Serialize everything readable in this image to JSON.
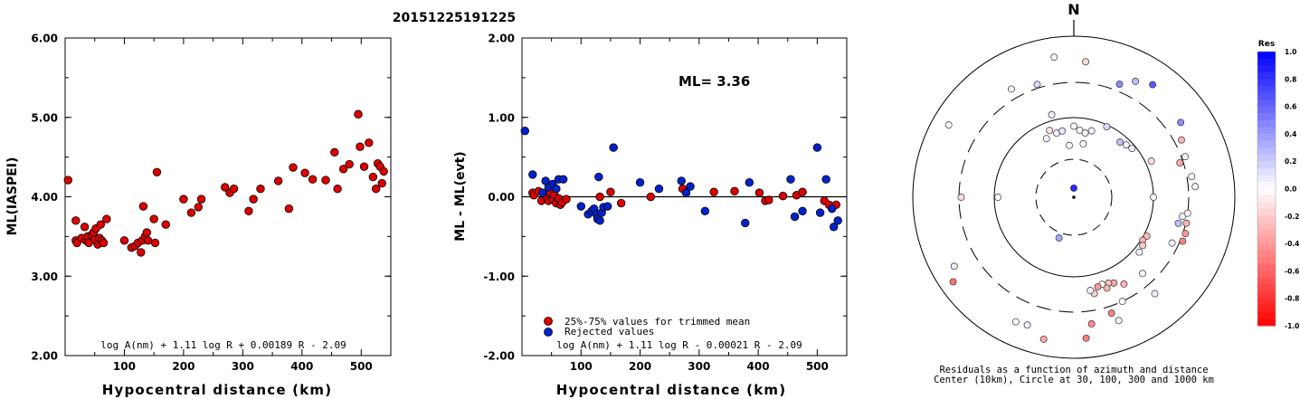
{
  "title": "20151225191225",
  "chart_data": [
    {
      "type": "scatter",
      "ylabel": "ML(IASPEI)",
      "xlabel": "Hypocentral distance (km)",
      "xlim": [
        0,
        550
      ],
      "ylim": [
        2.0,
        6.0
      ],
      "x_ticks": [
        "100",
        "200",
        "300",
        "400",
        "500"
      ],
      "y_ticks": [
        "2.00",
        "3.00",
        "4.00",
        "5.00",
        "6.00"
      ],
      "formula": "log A(nm) + 1.11 log R + 0.00189 R - 2.09",
      "series": [
        {
          "color": "#dd0000",
          "points": [
            [
              5,
              4.21
            ],
            [
              18,
              3.7
            ],
            [
              18,
              3.45
            ],
            [
              20,
              3.42
            ],
            [
              28,
              3.48
            ],
            [
              33,
              3.62
            ],
            [
              35,
              3.45
            ],
            [
              38,
              3.5
            ],
            [
              40,
              3.42
            ],
            [
              45,
              3.52
            ],
            [
              48,
              3.55
            ],
            [
              50,
              3.46
            ],
            [
              52,
              3.6
            ],
            [
              55,
              3.4
            ],
            [
              58,
              3.48
            ],
            [
              60,
              3.65
            ],
            [
              62,
              3.45
            ],
            [
              65,
              3.42
            ],
            [
              70,
              3.72
            ],
            [
              100,
              3.45
            ],
            [
              112,
              3.36
            ],
            [
              118,
              3.38
            ],
            [
              123,
              3.42
            ],
            [
              128,
              3.3
            ],
            [
              130,
              3.45
            ],
            [
              132,
              3.88
            ],
            [
              135,
              3.5
            ],
            [
              138,
              3.55
            ],
            [
              140,
              3.45
            ],
            [
              150,
              3.72
            ],
            [
              152,
              3.42
            ],
            [
              155,
              4.31
            ],
            [
              170,
              3.65
            ],
            [
              200,
              3.97
            ],
            [
              213,
              3.8
            ],
            [
              225,
              3.87
            ],
            [
              230,
              3.97
            ],
            [
              270,
              4.12
            ],
            [
              278,
              4.05
            ],
            [
              285,
              4.1
            ],
            [
              310,
              3.82
            ],
            [
              318,
              3.97
            ],
            [
              330,
              4.1
            ],
            [
              360,
              4.2
            ],
            [
              378,
              3.85
            ],
            [
              385,
              4.37
            ],
            [
              405,
              4.3
            ],
            [
              418,
              4.22
            ],
            [
              440,
              4.21
            ],
            [
              455,
              4.56
            ],
            [
              460,
              4.1
            ],
            [
              470,
              4.35
            ],
            [
              480,
              4.41
            ],
            [
              495,
              5.04
            ],
            [
              498,
              4.63
            ],
            [
              505,
              4.38
            ],
            [
              513,
              4.68
            ],
            [
              520,
              4.25
            ],
            [
              525,
              4.1
            ],
            [
              528,
              4.42
            ],
            [
              532,
              4.38
            ],
            [
              535,
              4.17
            ],
            [
              538,
              4.32
            ]
          ]
        }
      ]
    },
    {
      "type": "scatter",
      "ylabel": "ML - ML(evt)",
      "xlabel": "Hypocentral distance (km)",
      "xlim": [
        0,
        550
      ],
      "ylim": [
        -2.0,
        2.0
      ],
      "x_ticks": [
        "100",
        "200",
        "300",
        "400",
        "500"
      ],
      "y_ticks": [
        "-2.00",
        "-1.00",
        "0.00",
        "1.00",
        "2.00"
      ],
      "annotation": "ML= 3.36",
      "formula": "log A(nm) + 1.11 log R - 0.00021 R - 2.09",
      "legend": [
        "25%-75% values for trimmed mean",
        "Rejected values"
      ],
      "series": [
        {
          "name": "25%-75% values for trimmed mean",
          "color": "#dd0000",
          "points": [
            [
              18,
              0.05
            ],
            [
              20,
              0.02
            ],
            [
              28,
              0.07
            ],
            [
              33,
              -0.05
            ],
            [
              38,
              0.04
            ],
            [
              42,
              -0.02
            ],
            [
              45,
              -0.05
            ],
            [
              48,
              0.05
            ],
            [
              52,
              -0.03
            ],
            [
              55,
              0.02
            ],
            [
              58,
              -0.08
            ],
            [
              62,
              -0.02
            ],
            [
              65,
              -0.1
            ],
            [
              68,
              -0.07
            ],
            [
              75,
              -0.03
            ],
            [
              132,
              0.0
            ],
            [
              150,
              0.06
            ],
            [
              168,
              -0.08
            ],
            [
              218,
              0.0
            ],
            [
              272,
              0.1
            ],
            [
              325,
              0.06
            ],
            [
              360,
              0.07
            ],
            [
              402,
              0.05
            ],
            [
              412,
              -0.05
            ],
            [
              418,
              -0.04
            ],
            [
              442,
              0.01
            ],
            [
              465,
              0.02
            ],
            [
              475,
              0.06
            ],
            [
              512,
              -0.05
            ],
            [
              520,
              -0.1
            ],
            [
              532,
              -0.1
            ]
          ]
        },
        {
          "name": "Rejected values",
          "color": "#0022cc",
          "points": [
            [
              5,
              0.83
            ],
            [
              18,
              0.28
            ],
            [
              35,
              0.05
            ],
            [
              40,
              0.2
            ],
            [
              45,
              0.12
            ],
            [
              52,
              0.16
            ],
            [
              58,
              0.1
            ],
            [
              62,
              0.22
            ],
            [
              70,
              0.22
            ],
            [
              100,
              -0.12
            ],
            [
              112,
              -0.22
            ],
            [
              118,
              -0.18
            ],
            [
              122,
              -0.15
            ],
            [
              126,
              -0.22
            ],
            [
              128,
              -0.28
            ],
            [
              130,
              0.25
            ],
            [
              132,
              -0.3
            ],
            [
              135,
              -0.2
            ],
            [
              138,
              -0.13
            ],
            [
              145,
              -0.12
            ],
            [
              155,
              0.62
            ],
            [
              200,
              0.18
            ],
            [
              232,
              0.1
            ],
            [
              270,
              0.2
            ],
            [
              278,
              0.05
            ],
            [
              285,
              0.13
            ],
            [
              310,
              -0.18
            ],
            [
              385,
              0.18
            ],
            [
              378,
              -0.33
            ],
            [
              455,
              0.22
            ],
            [
              462,
              -0.25
            ],
            [
              475,
              -0.18
            ],
            [
              500,
              0.62
            ],
            [
              505,
              -0.2
            ],
            [
              515,
              0.22
            ],
            [
              525,
              -0.15
            ],
            [
              528,
              -0.38
            ],
            [
              535,
              -0.3
            ]
          ]
        }
      ]
    },
    {
      "type": "scatter",
      "subtype": "polar",
      "north_label": "N",
      "caption_line1": "Residuals as a function of azimuth and distance",
      "caption_line2": "Center (10km), Circle at 30, 100, 300 and 1000 km",
      "colorbar_title": "Res",
      "colorbar_ticks": [
        "1.0",
        "0.8",
        "0.6",
        "0.4",
        "0.2",
        "0.0",
        "-0.2",
        "-0.4",
        "-0.6",
        "-0.8",
        "-1.0"
      ],
      "stations": [
        {
          "az": 0,
          "dist_km": 13,
          "res": 0.85
        },
        {
          "az": 200,
          "dist_km": 35,
          "res": 0.35
        },
        {
          "az": 270,
          "dist_km": 90,
          "res": 0.0
        },
        {
          "az": 90,
          "dist_km": 100,
          "res": -0.05
        },
        {
          "az": 345,
          "dist_km": 68,
          "res": 0.05
        },
        {
          "az": 350,
          "dist_km": 70,
          "res": 0.1
        },
        {
          "az": 5,
          "dist_km": 70,
          "res": 0.02
        },
        {
          "az": 10,
          "dist_km": 66,
          "res": 0.03
        },
        {
          "az": 15,
          "dist_km": 73,
          "res": 0.05
        },
        {
          "az": 335,
          "dist_km": 65,
          "res": 0.06
        },
        {
          "az": 25,
          "dist_km": 95,
          "res": 0.15
        },
        {
          "az": 340,
          "dist_km": 78,
          "res": -0.12
        },
        {
          "az": 0,
          "dist_km": 78,
          "res": 0.02
        },
        {
          "az": 355,
          "dist_km": 45,
          "res": 0.03
        },
        {
          "az": 10,
          "dist_km": 48,
          "res": 0.02
        },
        {
          "az": 40,
          "dist_km": 80,
          "res": 0.25
        },
        {
          "az": 45,
          "dist_km": 85,
          "res": 0.06
        },
        {
          "az": 50,
          "dist_km": 90,
          "res": 0.05
        },
        {
          "az": 65,
          "dist_km": 120,
          "res": -0.15
        },
        {
          "az": 118,
          "dist_km": 110,
          "res": -0.25
        },
        {
          "az": 122,
          "dist_km": 105,
          "res": -0.3
        },
        {
          "az": 125,
          "dist_km": 115,
          "res": -0.2
        },
        {
          "az": 130,
          "dist_km": 120,
          "res": 0.04
        },
        {
          "az": 150,
          "dist_km": 190,
          "res": -0.3
        },
        {
          "az": 155,
          "dist_km": 160,
          "res": -0.35
        },
        {
          "az": 158,
          "dist_km": 150,
          "res": -0.25
        },
        {
          "az": 160,
          "dist_km": 170,
          "res": -0.3
        },
        {
          "az": 162,
          "dist_km": 145,
          "res": 0.0
        },
        {
          "az": 165,
          "dist_km": 150,
          "res": -0.4
        },
        {
          "az": 168,
          "dist_km": 180,
          "res": -0.2
        },
        {
          "az": 170,
          "dist_km": 160,
          "res": 0.05
        },
        {
          "az": 138,
          "dist_km": 205,
          "res": 0.02
        },
        {
          "az": 115,
          "dist_km": 245,
          "res": 0.05
        },
        {
          "az": 104,
          "dist_km": 240,
          "res": 0.25
        },
        {
          "az": 100,
          "dist_km": 260,
          "res": 0.05
        },
        {
          "az": 98,
          "dist_km": 300,
          "res": -0.05
        },
        {
          "az": 103,
          "dist_km": 305,
          "res": -0.3
        },
        {
          "az": 108,
          "dist_km": 320,
          "res": -0.4
        },
        {
          "az": 112,
          "dist_km": 320,
          "res": -0.5
        },
        {
          "az": 85,
          "dist_km": 360,
          "res": -0.05
        },
        {
          "az": 80,
          "dist_km": 340,
          "res": 0.02
        },
        {
          "az": 70,
          "dist_km": 330,
          "res": -0.05
        },
        {
          "az": 62,
          "dist_km": 360,
          "res": -0.3
        },
        {
          "az": 72,
          "dist_km": 270,
          "res": -0.35
        },
        {
          "az": 55,
          "dist_km": 450,
          "res": 0.45
        },
        {
          "az": 35,
          "dist_km": 540,
          "res": 0.65
        },
        {
          "az": 28,
          "dist_km": 460,
          "res": 0.25
        },
        {
          "az": 22,
          "dist_km": 360,
          "res": 0.45
        },
        {
          "az": 5,
          "dist_km": 520,
          "res": -0.15
        },
        {
          "az": 352,
          "dist_km": 600,
          "res": 0.05
        },
        {
          "az": 342,
          "dist_km": 330,
          "res": 0.15
        },
        {
          "az": 330,
          "dist_km": 390,
          "res": 0.05
        },
        {
          "az": 300,
          "dist_km": 650,
          "res": 0.0
        },
        {
          "az": 270,
          "dist_km": 280,
          "res": -0.15
        },
        {
          "az": 240,
          "dist_km": 550,
          "res": 0.08
        },
        {
          "az": 235,
          "dist_km": 700,
          "res": -0.55
        },
        {
          "az": 205,
          "dist_km": 540,
          "res": 0.02
        },
        {
          "az": 200,
          "dist_km": 520,
          "res": 0.05
        },
        {
          "az": 192,
          "dist_km": 660,
          "res": -0.35
        },
        {
          "az": 162,
          "dist_km": 360,
          "res": -0.5
        },
        {
          "az": 172,
          "dist_km": 420,
          "res": -0.45
        },
        {
          "az": 155,
          "dist_km": 300,
          "res": 0.02
        },
        {
          "az": 175,
          "dist_km": 600,
          "res": -0.5
        },
        {
          "az": 160,
          "dist_km": 460,
          "res": 0.05
        },
        {
          "az": 345,
          "dist_km": 120,
          "res": 0.05
        },
        {
          "az": 140,
          "dist_km": 400,
          "res": 0.05
        }
      ]
    }
  ]
}
